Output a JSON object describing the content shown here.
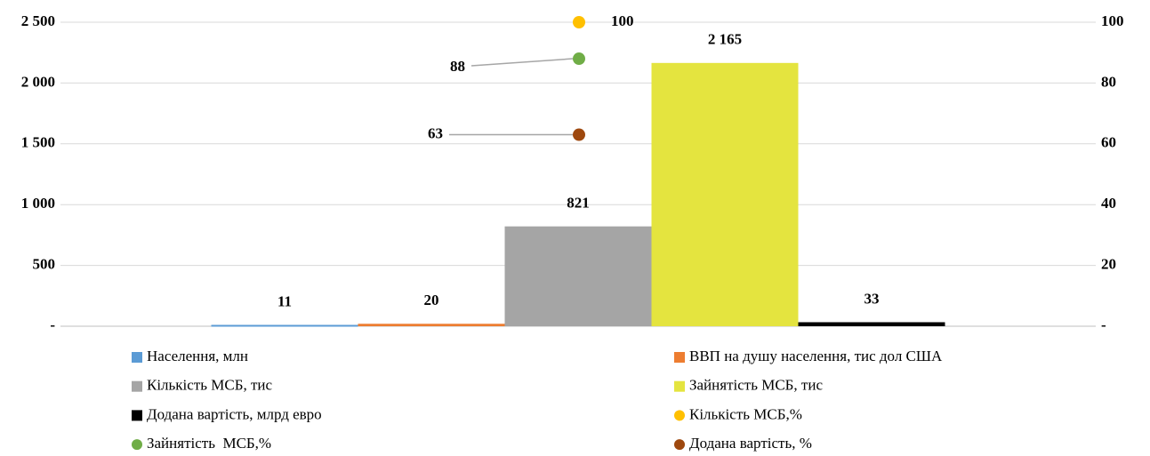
{
  "chart_data": {
    "type": "bar",
    "categories": [
      null
    ],
    "ylim": [
      0,
      2500
    ],
    "yticks": [
      {
        "value": 0,
        "label": "-"
      },
      500,
      {
        "value": 1000,
        "label": "1 000"
      },
      {
        "value": 1500,
        "label": "1 500"
      },
      {
        "value": 2000,
        "label": "2 000"
      },
      {
        "value": 2500,
        "label": "2 500"
      }
    ],
    "y2lim": [
      0,
      100
    ],
    "y2ticks": [
      {
        "value": 0,
        "label": "-"
      },
      20,
      40,
      60,
      80,
      100
    ],
    "grid": true,
    "legend": "bottom",
    "series": [
      {
        "name": "Населення, млн",
        "color": "#5b9bd5",
        "values": [
          11
        ]
      },
      {
        "name": "ВВП на душу населення, тис дол США",
        "color": "#ed7d31",
        "values": [
          20
        ]
      },
      {
        "name": "Кількість МСБ, тис",
        "color": "#a5a5a5",
        "values": [
          821
        ]
      },
      {
        "name": "Зайнятість МСБ, тис",
        "color": "#e4e43f",
        "values": [
          2165
        ],
        "value_labels": [
          "2 165"
        ]
      },
      {
        "name": "Додана вартість, млрд евро",
        "color": "#000000",
        "values": [
          33
        ]
      },
      {
        "name": "Кількість МСБ,%",
        "color": "#ffc000",
        "values": [
          100
        ],
        "axis": "y2"
      },
      {
        "name": "Зайнятість  МСБ,%",
        "color": "#70ad47",
        "values": [
          88
        ],
        "axis": "y2"
      },
      {
        "name": "Додана вартість, %",
        "color": "#9e480e",
        "values": [
          63
        ],
        "axis": "y2"
      }
    ]
  }
}
